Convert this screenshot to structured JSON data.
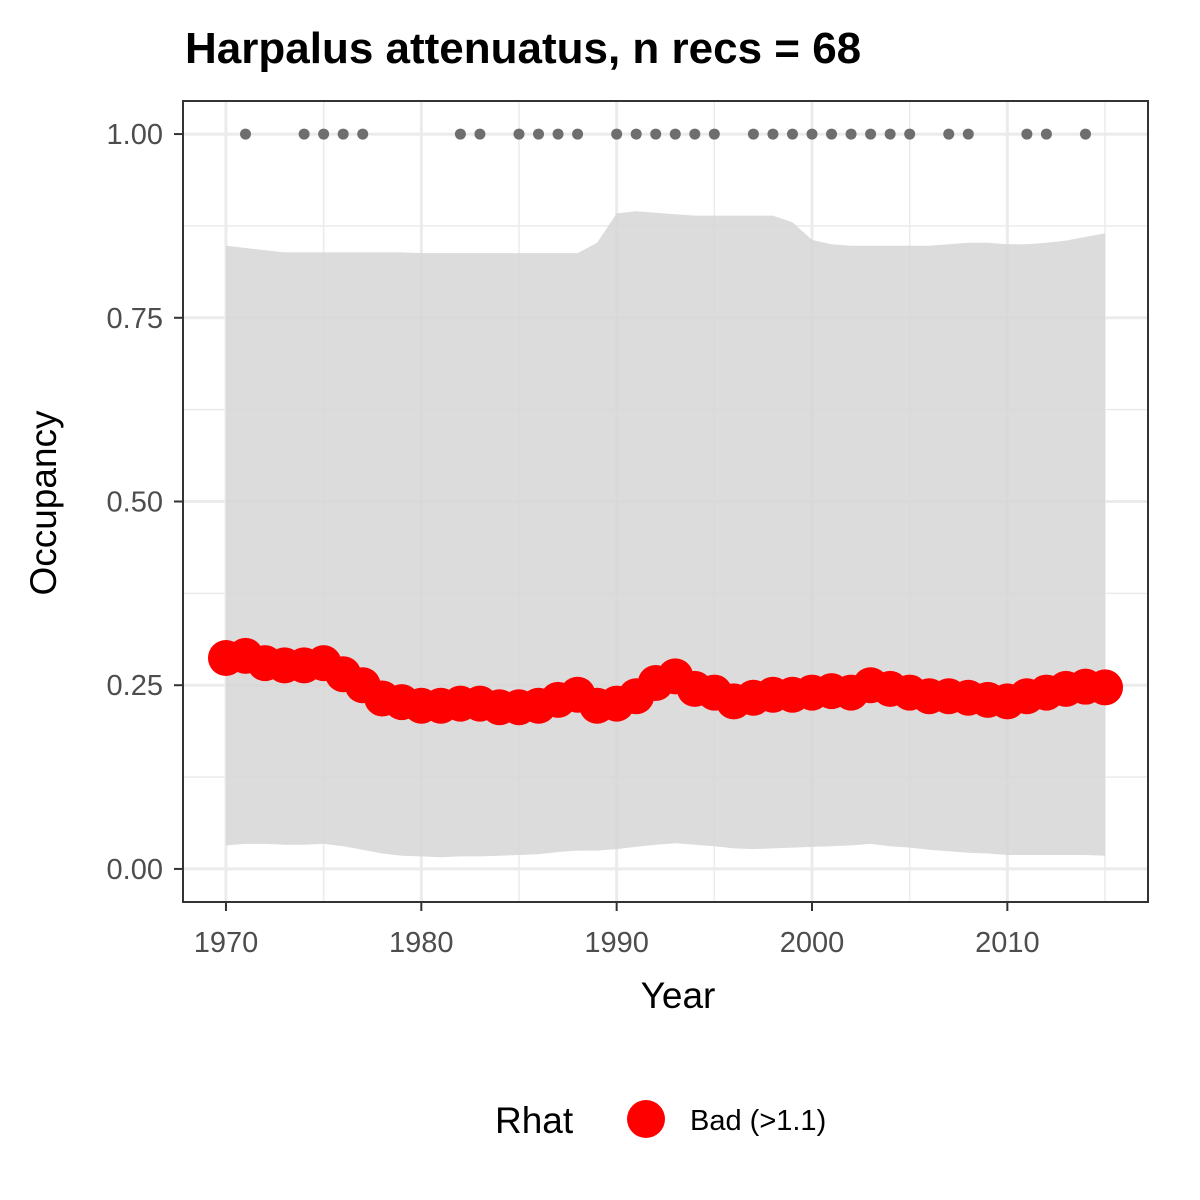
{
  "chart_data": {
    "type": "line",
    "title": "Harpalus attenuatus, n recs = 68",
    "xlabel": "Year",
    "ylabel": "Occupancy",
    "xlim": [
      1967.8,
      2017.2
    ],
    "ylim": [
      -0.045,
      1.045
    ],
    "x_ticks": [
      1970,
      1980,
      1990,
      2000,
      2010
    ],
    "x_tick_labels": [
      "1970",
      "1980",
      "1990",
      "2000",
      "2010"
    ],
    "y_ticks": [
      0,
      0.25,
      0.5,
      0.75,
      1.0
    ],
    "y_tick_labels": [
      "0.00",
      "0.25",
      "0.50",
      "0.75",
      "1.00"
    ],
    "grid": true,
    "legend": {
      "title": "Rhat",
      "label": "Bad (>1.1)",
      "position": "bottom",
      "color": "#ff0000"
    },
    "colors": {
      "points": "#ff0000",
      "ribbon": "#d6d6d6",
      "records": "#6e6e6e",
      "grid": "#ebebeb",
      "border": "#333333"
    },
    "x": [
      1970,
      1971,
      1972,
      1973,
      1974,
      1975,
      1976,
      1977,
      1978,
      1979,
      1980,
      1981,
      1982,
      1983,
      1984,
      1985,
      1986,
      1987,
      1988,
      1989,
      1990,
      1991,
      1992,
      1993,
      1994,
      1995,
      1996,
      1997,
      1998,
      1999,
      2000,
      2001,
      2002,
      2003,
      2004,
      2005,
      2006,
      2007,
      2008,
      2009,
      2010,
      2011,
      2012,
      2013,
      2014,
      2015
    ],
    "series": [
      {
        "name": "Bad (>1.1)",
        "values": [
          0.287,
          0.29,
          0.28,
          0.277,
          0.277,
          0.28,
          0.265,
          0.25,
          0.232,
          0.227,
          0.222,
          0.222,
          0.225,
          0.225,
          0.22,
          0.22,
          0.222,
          0.23,
          0.237,
          0.222,
          0.225,
          0.235,
          0.253,
          0.262,
          0.245,
          0.24,
          0.228,
          0.233,
          0.237,
          0.237,
          0.24,
          0.242,
          0.24,
          0.25,
          0.245,
          0.24,
          0.235,
          0.235,
          0.233,
          0.23,
          0.228,
          0.235,
          0.24,
          0.245,
          0.248,
          0.247
        ]
      }
    ],
    "ribbon_upper": [
      0.848,
      0.845,
      0.842,
      0.839,
      0.839,
      0.839,
      0.839,
      0.839,
      0.839,
      0.839,
      0.838,
      0.838,
      0.838,
      0.838,
      0.838,
      0.838,
      0.838,
      0.838,
      0.838,
      0.852,
      0.892,
      0.895,
      0.893,
      0.891,
      0.889,
      0.889,
      0.889,
      0.889,
      0.889,
      0.88,
      0.856,
      0.85,
      0.848,
      0.848,
      0.848,
      0.848,
      0.848,
      0.85,
      0.852,
      0.852,
      0.85,
      0.85,
      0.852,
      0.855,
      0.86,
      0.865
    ],
    "ribbon_lower": [
      0.032,
      0.034,
      0.034,
      0.033,
      0.033,
      0.034,
      0.031,
      0.026,
      0.021,
      0.018,
      0.017,
      0.016,
      0.017,
      0.017,
      0.018,
      0.019,
      0.02,
      0.023,
      0.025,
      0.025,
      0.027,
      0.03,
      0.033,
      0.035,
      0.033,
      0.031,
      0.028,
      0.027,
      0.028,
      0.029,
      0.03,
      0.031,
      0.032,
      0.034,
      0.031,
      0.029,
      0.026,
      0.024,
      0.022,
      0.021,
      0.019,
      0.019,
      0.019,
      0.019,
      0.019,
      0.018
    ],
    "records": {
      "y": 1.0,
      "years": [
        1971,
        1974,
        1975,
        1976,
        1977,
        1982,
        1983,
        1985,
        1986,
        1987,
        1988,
        1990,
        1991,
        1992,
        1993,
        1994,
        1995,
        1997,
        1998,
        1999,
        2000,
        2001,
        2002,
        2003,
        2004,
        2005,
        2007,
        2008,
        2011,
        2012,
        2014
      ]
    }
  }
}
